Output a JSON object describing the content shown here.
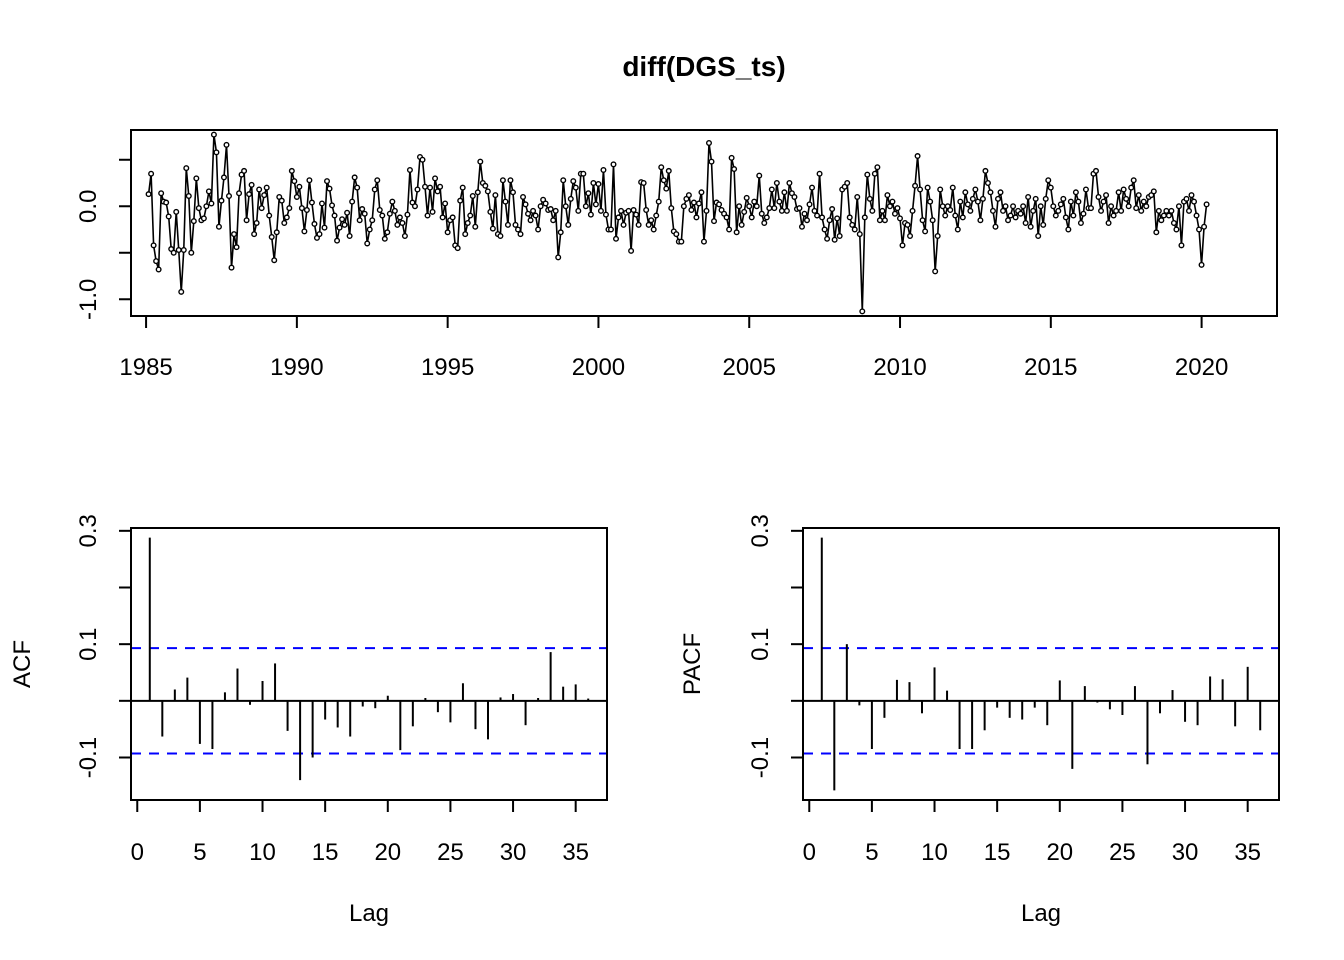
{
  "chart_data": [
    {
      "type": "line",
      "title": "diff(DGS_ts)",
      "xlabel": "",
      "ylabel": "",
      "x_start": 1985.083,
      "x_step": 0.08333,
      "xlim": [
        1984.5,
        2022.5
      ],
      "ylim": [
        -1.18,
        0.82
      ],
      "xticks": [
        1985,
        1990,
        1995,
        2000,
        2005,
        2010,
        2015,
        2020
      ],
      "xtick_labels": [
        "1985",
        "1990",
        "1995",
        "2000",
        "2005",
        "2010",
        "2015",
        "2020"
      ],
      "yticks": [
        -1.0,
        -0.5,
        0.0,
        0.5
      ],
      "ytick_labels": [
        "-1.0",
        "",
        "0.0",
        ""
      ],
      "values": [
        0.13,
        0.35,
        -0.42,
        -0.59,
        -0.68,
        0.14,
        0.05,
        0.04,
        -0.11,
        -0.46,
        -0.5,
        -0.06,
        -0.47,
        -0.92,
        -0.47,
        0.41,
        0.11,
        -0.5,
        -0.16,
        0.3,
        -0.02,
        -0.15,
        -0.13,
        0.0,
        0.16,
        0.03,
        0.77,
        0.58,
        -0.22,
        0.06,
        0.31,
        0.66,
        0.11,
        -0.66,
        -0.3,
        -0.44,
        0.14,
        0.34,
        0.38,
        -0.15,
        0.13,
        0.23,
        -0.3,
        -0.18,
        0.18,
        -0.02,
        0.12,
        0.2,
        -0.1,
        -0.33,
        -0.58,
        -0.28,
        0.1,
        0.06,
        -0.18,
        -0.12,
        -0.02,
        0.38,
        0.27,
        0.1,
        0.21,
        -0.02,
        -0.27,
        -0.04,
        0.28,
        0.04,
        -0.19,
        -0.34,
        -0.3,
        0.03,
        -0.23,
        0.27,
        0.19,
        0.01,
        -0.1,
        -0.37,
        -0.23,
        -0.14,
        -0.2,
        -0.07,
        -0.32,
        0.05,
        0.31,
        0.2,
        -0.15,
        -0.03,
        -0.08,
        -0.4,
        -0.25,
        -0.15,
        0.18,
        0.28,
        -0.04,
        -0.1,
        -0.35,
        -0.28,
        -0.08,
        0.05,
        -0.05,
        -0.2,
        -0.12,
        -0.18,
        -0.32,
        -0.09,
        0.39,
        0.04,
        0.0,
        0.18,
        0.53,
        0.5,
        0.21,
        -0.1,
        0.2,
        -0.06,
        0.3,
        0.16,
        0.21,
        -0.12,
        0.03,
        -0.28,
        -0.15,
        -0.12,
        -0.42,
        -0.45,
        0.06,
        0.2,
        -0.3,
        -0.18,
        -0.1,
        0.11,
        -0.22,
        0.15,
        0.48,
        0.25,
        0.22,
        0.16,
        -0.06,
        -0.24,
        0.12,
        -0.3,
        -0.32,
        0.28,
        0.05,
        -0.2,
        0.28,
        0.15,
        -0.2,
        -0.25,
        -0.3,
        0.1,
        0.02,
        -0.08,
        -0.15,
        -0.05,
        -0.1,
        -0.25,
        0.0,
        0.07,
        0.03,
        -0.04,
        -0.03,
        -0.15,
        -0.05,
        -0.55,
        -0.28,
        0.28,
        0.0,
        -0.2,
        0.08,
        0.27,
        0.2,
        -0.05,
        0.35,
        0.35,
        0.0,
        0.14,
        -0.09,
        0.25,
        0.02,
        0.24,
        -0.05,
        0.39,
        -0.09,
        -0.25,
        -0.25,
        0.45,
        -0.35,
        -0.12,
        -0.05,
        -0.2,
        -0.07,
        -0.05,
        -0.48,
        -0.04,
        -0.09,
        -0.2,
        0.26,
        0.25,
        -0.04,
        -0.2,
        -0.15,
        -0.25,
        -0.1,
        0.05,
        0.42,
        0.28,
        0.19,
        0.38,
        -0.02,
        -0.27,
        -0.3,
        -0.38,
        -0.38,
        0.0,
        0.08,
        0.12,
        -0.04,
        0.04,
        -0.12,
        0.03,
        0.15,
        -0.38,
        -0.05,
        0.68,
        0.48,
        -0.16,
        0.04,
        0.02,
        -0.04,
        -0.08,
        -0.12,
        -0.25,
        0.52,
        0.4,
        -0.28,
        0.0,
        -0.2,
        -0.06,
        0.09,
        0.0,
        -0.12,
        0.05,
        0.0,
        0.33,
        -0.08,
        -0.18,
        -0.12,
        -0.02,
        0.18,
        -0.02,
        0.25,
        0.05,
        -0.05,
        0.15,
        -0.05,
        0.25,
        0.14,
        0.1,
        -0.03,
        -0.02,
        -0.22,
        -0.08,
        -0.15,
        0.02,
        0.2,
        -0.05,
        -0.1,
        0.35,
        -0.12,
        -0.25,
        -0.35,
        -0.15,
        -0.03,
        -0.36,
        -0.13,
        -0.32,
        0.18,
        0.21,
        0.25,
        -0.12,
        -0.2,
        -0.25,
        0.1,
        -0.3,
        -1.13,
        -0.12,
        0.34,
        0.08,
        -0.05,
        0.35,
        0.42,
        -0.15,
        -0.05,
        -0.15,
        0.12,
        0.0,
        0.05,
        -0.08,
        -0.02,
        -0.13,
        -0.42,
        -0.18,
        -0.2,
        -0.32,
        -0.05,
        0.22,
        0.54,
        0.18,
        -0.15,
        -0.27,
        0.2,
        0.05,
        -0.15,
        -0.7,
        -0.32,
        0.18,
        0.0,
        -0.1,
        0.0,
        -0.04,
        0.2,
        -0.1,
        -0.25,
        0.05,
        -0.12,
        0.15,
        0.02,
        -0.05,
        0.08,
        0.18,
        0.05,
        -0.15,
        0.08,
        0.38,
        0.25,
        0.15,
        -0.05,
        -0.22,
        0.08,
        0.15,
        -0.05,
        0.0,
        -0.15,
        -0.1,
        0.0,
        -0.12,
        -0.05,
        -0.08,
        0.0,
        -0.18,
        0.1,
        -0.22,
        -0.05,
        0.08,
        -0.32,
        0.0,
        -0.2,
        0.08,
        0.28,
        0.2,
        0.0,
        -0.1,
        -0.05,
        0.02,
        0.08,
        -0.12,
        -0.25,
        0.05,
        -0.1,
        0.15,
        0.05,
        -0.18,
        -0.08,
        0.18,
        -0.02,
        -0.02,
        0.35,
        0.38,
        0.1,
        -0.05,
        0.05,
        0.12,
        -0.18,
        0.0,
        -0.1,
        -0.05,
        0.15,
        -0.05,
        0.18,
        0.08,
        0.0,
        0.2,
        0.28,
        -0.02,
        0.12,
        -0.05,
        0.05,
        0.0,
        0.1,
        0.12,
        0.16,
        -0.28,
        -0.05,
        -0.15,
        -0.1,
        -0.05,
        -0.1,
        -0.05,
        -0.18,
        -0.25,
        0.0,
        -0.42,
        0.05,
        0.08,
        -0.05,
        0.12,
        0.05,
        -0.1,
        -0.25,
        -0.63,
        -0.22,
        0.02
      ]
    },
    {
      "type": "bar",
      "title": "",
      "xlabel": "Lag",
      "ylabel": "ACF",
      "xlim": [
        -0.5,
        37.5
      ],
      "ylim": [
        -0.175,
        0.305
      ],
      "xticks": [
        0,
        5,
        10,
        15,
        20,
        25,
        30,
        35
      ],
      "xtick_labels": [
        "0",
        "5",
        "10",
        "15",
        "20",
        "25",
        "30",
        "35"
      ],
      "yticks": [
        -0.1,
        0.0,
        0.1,
        0.2,
        0.3
      ],
      "ytick_labels": [
        "-0.1",
        "",
        "0.1",
        "",
        "0.3"
      ],
      "confidence_limit": 0.093,
      "lags": [
        1,
        2,
        3,
        4,
        5,
        6,
        7,
        8,
        9,
        10,
        11,
        12,
        13,
        14,
        15,
        16,
        17,
        18,
        19,
        20,
        21,
        22,
        23,
        24,
        25,
        26,
        27,
        28,
        29,
        30,
        31,
        32,
        33,
        34,
        35,
        36
      ],
      "values": [
        0.288,
        -0.063,
        0.02,
        0.041,
        -0.076,
        -0.085,
        0.015,
        0.057,
        -0.007,
        0.035,
        0.066,
        -0.053,
        -0.14,
        -0.1,
        -0.033,
        -0.047,
        -0.063,
        -0.01,
        -0.013,
        0.009,
        -0.087,
        -0.045,
        0.005,
        -0.02,
        -0.038,
        0.031,
        -0.05,
        -0.068,
        0.006,
        0.012,
        -0.043,
        0.005,
        0.086,
        0.025,
        0.029,
        0.004
      ]
    },
    {
      "type": "bar",
      "title": "",
      "xlabel": "Lag",
      "ylabel": "PACF",
      "xlim": [
        -0.5,
        37.5
      ],
      "ylim": [
        -0.175,
        0.305
      ],
      "xticks": [
        0,
        5,
        10,
        15,
        20,
        25,
        30,
        35
      ],
      "xtick_labels": [
        "0",
        "5",
        "10",
        "15",
        "20",
        "25",
        "30",
        "35"
      ],
      "yticks": [
        -0.1,
        0.0,
        0.1,
        0.2,
        0.3
      ],
      "ytick_labels": [
        "-0.1",
        "",
        "0.1",
        "",
        "0.3"
      ],
      "confidence_limit": 0.093,
      "lags": [
        1,
        2,
        3,
        4,
        5,
        6,
        7,
        8,
        9,
        10,
        11,
        12,
        13,
        14,
        15,
        16,
        17,
        18,
        19,
        20,
        21,
        22,
        23,
        24,
        25,
        26,
        27,
        28,
        29,
        30,
        31,
        32,
        33,
        34,
        35,
        36
      ],
      "values": [
        0.288,
        -0.158,
        0.1,
        -0.008,
        -0.085,
        -0.03,
        0.037,
        0.033,
        -0.022,
        0.059,
        0.018,
        -0.085,
        -0.085,
        -0.052,
        -0.012,
        -0.03,
        -0.033,
        -0.012,
        -0.043,
        0.036,
        -0.12,
        0.026,
        -0.003,
        -0.015,
        -0.025,
        0.026,
        -0.112,
        -0.022,
        0.019,
        -0.037,
        -0.043,
        0.043,
        0.038,
        -0.045,
        0.06,
        -0.052
      ]
    }
  ],
  "colors": {
    "series": "#000000",
    "confidence_band": "#0000ff",
    "axis": "#000000",
    "background": "#ffffff"
  }
}
